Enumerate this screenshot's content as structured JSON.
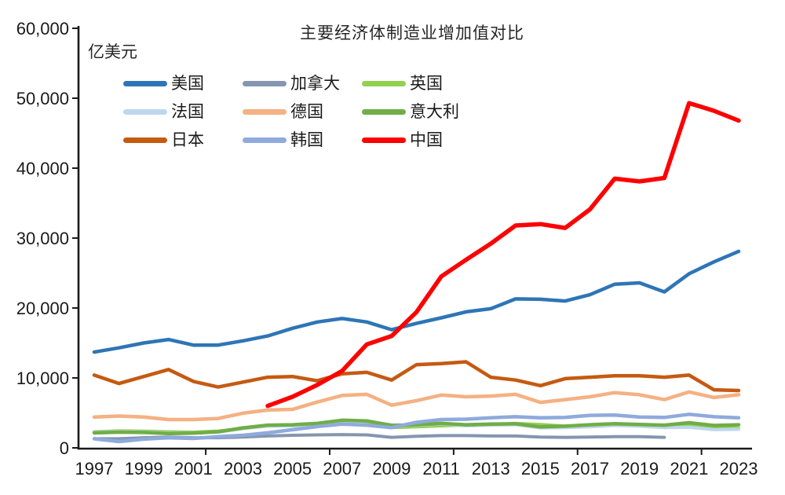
{
  "chart": {
    "title_note": "static line chart image, no interactive controls visible"
  },
  "chart_data": {
    "type": "line",
    "title": "主要经济体制造业增加值对比",
    "ylabel": "亿美元",
    "xlabel": "",
    "x": [
      1997,
      1998,
      1999,
      2000,
      2001,
      2002,
      2003,
      2004,
      2005,
      2006,
      2007,
      2008,
      2009,
      2010,
      2011,
      2012,
      2013,
      2014,
      2015,
      2016,
      2017,
      2018,
      2019,
      2020,
      2021,
      2022,
      2023
    ],
    "x_tick_labels": [
      "1997",
      "1999",
      "2001",
      "2003",
      "2005",
      "2007",
      "2009",
      "2011",
      "2013",
      "2015",
      "2017",
      "2019",
      "2021",
      "2023"
    ],
    "y_ticks": [
      0,
      10000,
      20000,
      30000,
      40000,
      50000,
      60000
    ],
    "y_tick_labels": [
      "0",
      "10,000",
      "20,000",
      "30,000",
      "40,000",
      "50,000",
      "60,000"
    ],
    "ylim": [
      0,
      60000
    ],
    "grid": false,
    "legend_position": "top-left",
    "legend_rows": [
      [
        "美国",
        "加拿大",
        "英国"
      ],
      [
        "法国",
        "德国",
        "意大利"
      ],
      [
        "日本",
        "韩国",
        "中国"
      ]
    ],
    "series": [
      {
        "id": "us",
        "name": "美国",
        "color": "#2E75B6",
        "width": 4.5,
        "values": [
          13700,
          14300,
          15000,
          15500,
          14700,
          14700,
          15300,
          16000,
          17100,
          18000,
          18500,
          18000,
          16900,
          17800,
          18600,
          19450,
          19900,
          21300,
          21250,
          21000,
          21900,
          23400,
          23600,
          22300,
          24900,
          26600,
          28100
        ]
      },
      {
        "id": "canada",
        "name": "加拿大",
        "color": "#8496B0",
        "width": 4,
        "values": [
          1300,
          1300,
          1450,
          1550,
          1450,
          1450,
          1550,
          1700,
          1800,
          1850,
          1900,
          1850,
          1500,
          1650,
          1750,
          1750,
          1700,
          1700,
          1550,
          1500,
          1550,
          1600,
          1600,
          1500,
          null,
          null,
          null
        ]
      },
      {
        "id": "uk",
        "name": "英国",
        "color": "#92D050",
        "width": 4,
        "values": [
          2300,
          2450,
          2400,
          2300,
          2250,
          2400,
          2750,
          3150,
          3200,
          3400,
          3750,
          3450,
          2900,
          3000,
          3150,
          3250,
          3300,
          3500,
          3350,
          3100,
          3150,
          3350,
          3250,
          3050,
          3150,
          2850,
          2800
        ]
      },
      {
        "id": "france",
        "name": "法国",
        "color": "#BDD7EE",
        "width": 4,
        "values": [
          2250,
          2350,
          2300,
          2150,
          2150,
          2250,
          2750,
          3100,
          3150,
          3300,
          3650,
          3800,
          3300,
          3200,
          3400,
          3150,
          3250,
          3300,
          2850,
          2900,
          3000,
          3200,
          3100,
          2900,
          2950,
          2600,
          2650
        ]
      },
      {
        "id": "germany",
        "name": "德国",
        "color": "#F4B183",
        "width": 4.5,
        "values": [
          4400,
          4550,
          4400,
          4050,
          4050,
          4200,
          4950,
          5400,
          5500,
          6550,
          7500,
          7650,
          6100,
          6750,
          7550,
          7300,
          7400,
          7650,
          6500,
          6900,
          7300,
          7900,
          7600,
          6900,
          8000,
          7200,
          7600
        ]
      },
      {
        "id": "italy",
        "name": "意大利",
        "color": "#70AD47",
        "width": 4.5,
        "values": [
          2150,
          2250,
          2200,
          2050,
          2100,
          2300,
          2850,
          3250,
          3300,
          3500,
          3950,
          3850,
          3200,
          3300,
          3500,
          3300,
          3400,
          3450,
          3000,
          3100,
          3300,
          3450,
          3350,
          3250,
          3600,
          3200,
          3300
        ]
      },
      {
        "id": "japan",
        "name": "日本",
        "color": "#C55A11",
        "width": 4.5,
        "values": [
          10400,
          9200,
          10200,
          11200,
          9500,
          8700,
          9400,
          10100,
          10200,
          9600,
          10600,
          10800,
          9700,
          11900,
          12050,
          12300,
          10100,
          9700,
          8900,
          9900,
          10100,
          10300,
          10300,
          10100,
          10400,
          8300,
          8200
        ]
      },
      {
        "id": "korea",
        "name": "韩国",
        "color": "#8FAADC",
        "width": 4.5,
        "values": [
          1300,
          900,
          1250,
          1450,
          1350,
          1600,
          1800,
          2150,
          2600,
          3050,
          3400,
          3250,
          2900,
          3650,
          4050,
          4100,
          4300,
          4450,
          4300,
          4350,
          4650,
          4700,
          4400,
          4350,
          4800,
          4450,
          4300
        ]
      },
      {
        "id": "china",
        "name": "中国",
        "color": "#FF0000",
        "width": 5.5,
        "values": [
          null,
          null,
          null,
          null,
          null,
          null,
          null,
          6000,
          7300,
          9000,
          11000,
          14800,
          16000,
          19400,
          24500,
          26900,
          29200,
          31800,
          32000,
          31450,
          34100,
          38500,
          38100,
          38600,
          49300,
          48200,
          46800
        ]
      }
    ]
  }
}
